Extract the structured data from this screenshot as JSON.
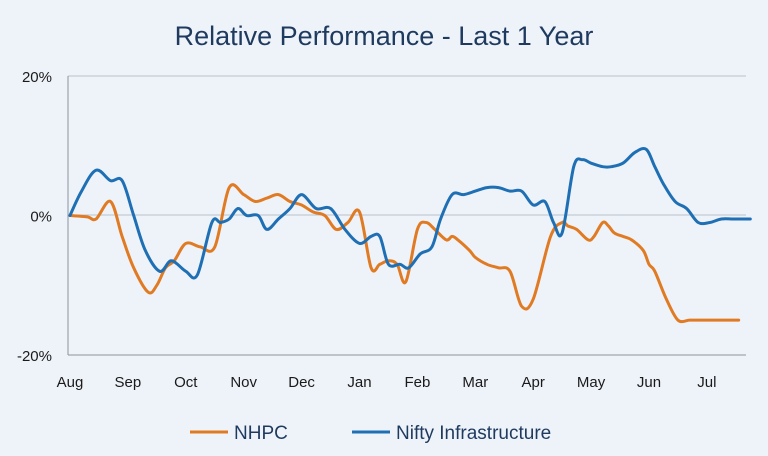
{
  "chart_data": {
    "type": "line",
    "title": "Relative Performance - Last 1 Year",
    "xlabel": "",
    "ylabel": "",
    "x_tick_labels": [
      "Aug",
      "Sep",
      "Oct",
      "Nov",
      "Dec",
      "Jan",
      "Feb",
      "Mar",
      "Apr",
      "May",
      "Jun",
      "Jul"
    ],
    "y_tick_labels": [
      "20%",
      "0%",
      "-20%"
    ],
    "y_ticks": [
      20,
      0,
      -20
    ],
    "xlim": [
      0,
      11.75
    ],
    "ylim": [
      -20,
      20
    ],
    "grid": "horizontal",
    "legend_position": "bottom",
    "series": [
      {
        "name": "NHPC",
        "color": "#e07b24",
        "x": [
          0,
          0.3,
          0.45,
          0.7,
          0.9,
          1.1,
          1.35,
          1.5,
          1.65,
          1.8,
          2.0,
          2.25,
          2.5,
          2.75,
          3.0,
          3.2,
          3.4,
          3.6,
          3.8,
          4.0,
          4.2,
          4.4,
          4.6,
          4.8,
          5.0,
          5.2,
          5.35,
          5.5,
          5.65,
          5.8,
          6.0,
          6.15,
          6.3,
          6.5,
          6.6,
          6.7,
          6.9,
          7.0,
          7.2,
          7.4,
          7.6,
          7.8,
          8.0,
          8.3,
          8.5,
          8.6,
          8.75,
          8.95,
          9.05,
          9.2,
          9.3,
          9.4,
          9.55,
          9.7,
          9.9,
          10.0,
          10.1,
          10.3,
          10.5,
          10.7,
          10.85,
          11.0,
          11.2,
          11.4,
          11.55
        ],
        "values": [
          0,
          -0.2,
          -0.5,
          2,
          -3,
          -7.5,
          -11,
          -10,
          -7.5,
          -6.5,
          -4,
          -4.5,
          -4.5,
          4,
          3,
          2,
          2.5,
          3,
          2,
          1.5,
          0.5,
          0,
          -2,
          -1,
          0.5,
          -7.5,
          -7,
          -6.5,
          -7,
          -9.5,
          -2,
          -1,
          -2,
          -3.5,
          -3,
          -3.5,
          -5,
          -6,
          -7,
          -7.5,
          -8,
          -13,
          -12,
          -3,
          -1,
          -1.5,
          -2,
          -3.5,
          -3,
          -1,
          -1.5,
          -2.5,
          -3,
          -3.5,
          -5,
          -7,
          -8,
          -12,
          -15,
          -15,
          -15,
          -15,
          -15,
          -15,
          -15
        ]
      },
      {
        "name": "Nifty Infrastructure",
        "color": "#1f6fb4",
        "x": [
          0,
          0.2,
          0.45,
          0.7,
          0.9,
          1.1,
          1.3,
          1.55,
          1.75,
          2.0,
          2.2,
          2.45,
          2.6,
          2.75,
          2.9,
          3.05,
          3.25,
          3.4,
          3.6,
          3.8,
          4.0,
          4.25,
          4.5,
          4.75,
          5.0,
          5.2,
          5.35,
          5.5,
          5.7,
          5.85,
          6.05,
          6.25,
          6.4,
          6.6,
          6.8,
          7.0,
          7.2,
          7.4,
          7.6,
          7.8,
          8.0,
          8.2,
          8.35,
          8.5,
          8.7,
          8.85,
          9.0,
          9.2,
          9.35,
          9.55,
          9.75,
          9.95,
          10.1,
          10.25,
          10.45,
          10.65,
          10.85,
          11.05,
          11.25,
          11.45,
          11.6,
          11.75
        ],
        "values": [
          0,
          3.5,
          6.5,
          5,
          5,
          0,
          -5,
          -8,
          -6.5,
          -8,
          -8.5,
          -1,
          -1,
          -0.5,
          1,
          0,
          0,
          -2,
          -0.5,
          1,
          3,
          1,
          1,
          -2,
          -4,
          -3,
          -3,
          -7,
          -7,
          -7.5,
          -5.5,
          -4.5,
          -0.5,
          3,
          3,
          3.5,
          4,
          4,
          3.5,
          3.5,
          1.5,
          2,
          -1,
          -2.5,
          7,
          8,
          7.5,
          7,
          7,
          7.5,
          9,
          9.5,
          7,
          4.5,
          2,
          1,
          -1,
          -1,
          -0.5,
          -0.5,
          -0.5,
          -0.5
        ]
      }
    ]
  }
}
